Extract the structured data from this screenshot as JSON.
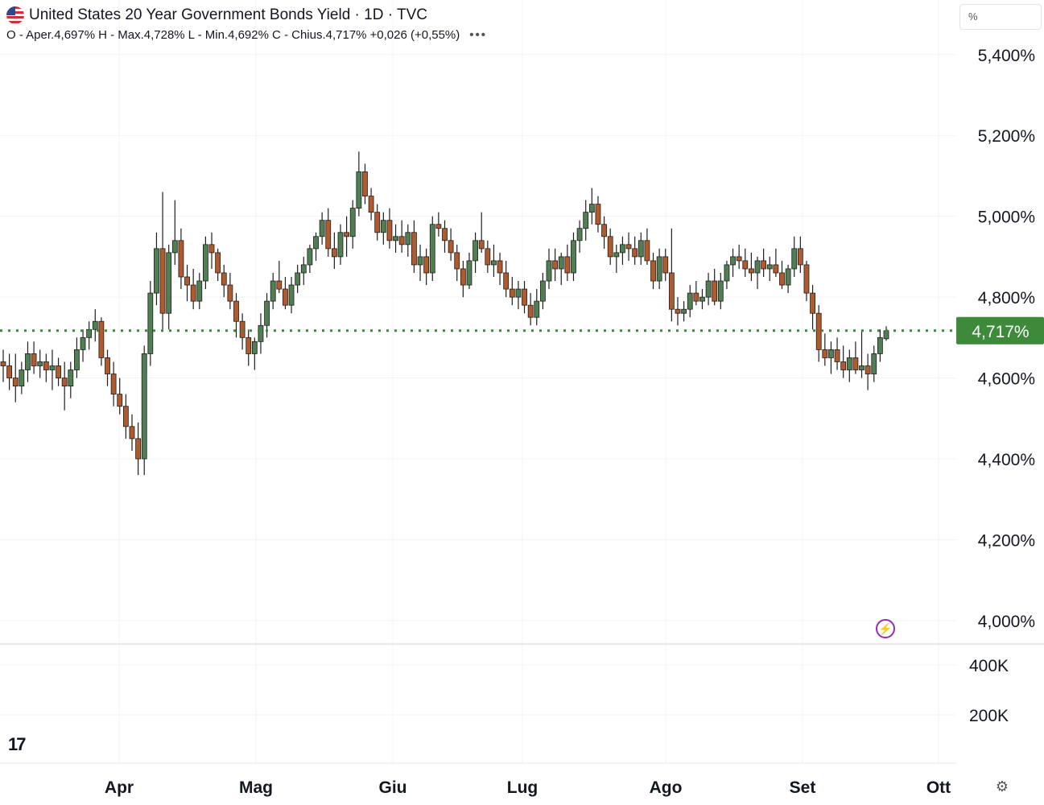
{
  "header": {
    "title": "United States 20 Year Government Bonds Yield · 1D · TVC",
    "ohlc": {
      "open": "O - Aper.4,697%",
      "high": "H - Max.4,728%",
      "low": "L - Min.4,692%",
      "close": "C - Chius.4,717%",
      "change": "+0,026 (+0,55%)"
    },
    "more_label": "•••"
  },
  "scale_toggle": "%",
  "logo_text": "17",
  "icons": {
    "alert": "lightning-icon",
    "settings": "gear-icon"
  },
  "colors": {
    "up": "#4f7f52",
    "down": "#b05a2e",
    "last_price": "#3c8a3a",
    "grid": "#f0f3fa",
    "text": "#131722"
  },
  "chart_data": {
    "type": "candlestick",
    "x_tick_labels": [
      "Apr",
      "Mag",
      "Giu",
      "Lug",
      "Ago",
      "Set",
      "Ott"
    ],
    "y_tick_labels": [
      "5,400%",
      "5,200%",
      "5,000%",
      "4,800%",
      "4,600%",
      "4,400%",
      "4,200%",
      "4,000%"
    ],
    "y_ticks": [
      5.4,
      5.2,
      5.0,
      4.8,
      4.6,
      4.4,
      4.2,
      4.0
    ],
    "ylim": [
      3.942,
      5.535
    ],
    "volume_tick_labels": [
      "400K",
      "200K"
    ],
    "last_price": 4.717,
    "last_price_label": "4,717%",
    "grid": true,
    "candles": [
      [
        4.64,
        4.67,
        4.59,
        4.63
      ],
      [
        4.63,
        4.66,
        4.57,
        4.6
      ],
      [
        4.6,
        4.66,
        4.54,
        4.58
      ],
      [
        4.58,
        4.64,
        4.56,
        4.62
      ],
      [
        4.62,
        4.69,
        4.59,
        4.66
      ],
      [
        4.66,
        4.69,
        4.61,
        4.63
      ],
      [
        4.63,
        4.67,
        4.6,
        4.64
      ],
      [
        4.64,
        4.66,
        4.59,
        4.62
      ],
      [
        4.62,
        4.67,
        4.57,
        4.63
      ],
      [
        4.63,
        4.65,
        4.58,
        4.6
      ],
      [
        4.6,
        4.64,
        4.52,
        4.58
      ],
      [
        4.58,
        4.64,
        4.55,
        4.62
      ],
      [
        4.62,
        4.7,
        4.6,
        4.67
      ],
      [
        4.67,
        4.72,
        4.64,
        4.7
      ],
      [
        4.7,
        4.74,
        4.67,
        4.72
      ],
      [
        4.72,
        4.77,
        4.69,
        4.74
      ],
      [
        4.74,
        4.75,
        4.63,
        4.65
      ],
      [
        4.65,
        4.67,
        4.58,
        4.61
      ],
      [
        4.61,
        4.64,
        4.53,
        4.56
      ],
      [
        4.56,
        4.6,
        4.51,
        4.53
      ],
      [
        4.53,
        4.56,
        4.45,
        4.48
      ],
      [
        4.48,
        4.51,
        4.42,
        4.45
      ],
      [
        4.45,
        4.49,
        4.36,
        4.4
      ],
      [
        4.4,
        4.68,
        4.36,
        4.66
      ],
      [
        4.66,
        4.84,
        4.63,
        4.81
      ],
      [
        4.81,
        4.96,
        4.78,
        4.92
      ],
      [
        4.92,
        5.06,
        4.72,
        4.76
      ],
      [
        4.76,
        4.93,
        4.72,
        4.91
      ],
      [
        4.91,
        5.04,
        4.88,
        4.94
      ],
      [
        4.94,
        4.97,
        4.82,
        4.85
      ],
      [
        4.85,
        4.88,
        4.79,
        4.83
      ],
      [
        4.83,
        4.87,
        4.77,
        4.79
      ],
      [
        4.79,
        4.86,
        4.77,
        4.84
      ],
      [
        4.84,
        4.95,
        4.82,
        4.93
      ],
      [
        4.93,
        4.96,
        4.87,
        4.91
      ],
      [
        4.91,
        4.92,
        4.84,
        4.86
      ],
      [
        4.86,
        4.88,
        4.8,
        4.83
      ],
      [
        4.83,
        4.86,
        4.77,
        4.79
      ],
      [
        4.79,
        4.81,
        4.7,
        4.74
      ],
      [
        4.74,
        4.76,
        4.67,
        4.7
      ],
      [
        4.7,
        4.72,
        4.63,
        4.66
      ],
      [
        4.66,
        4.7,
        4.62,
        4.69
      ],
      [
        4.69,
        4.76,
        4.66,
        4.73
      ],
      [
        4.73,
        4.81,
        4.7,
        4.79
      ],
      [
        4.79,
        4.86,
        4.77,
        4.84
      ],
      [
        4.84,
        4.89,
        4.81,
        4.82
      ],
      [
        4.82,
        4.85,
        4.77,
        4.78
      ],
      [
        4.78,
        4.85,
        4.76,
        4.83
      ],
      [
        4.83,
        4.88,
        4.81,
        4.86
      ],
      [
        4.86,
        4.9,
        4.83,
        4.88
      ],
      [
        4.88,
        4.93,
        4.86,
        4.92
      ],
      [
        4.92,
        4.96,
        4.89,
        4.95
      ],
      [
        4.95,
        5.01,
        4.93,
        4.99
      ],
      [
        4.99,
        5.02,
        4.9,
        4.92
      ],
      [
        4.92,
        4.96,
        4.87,
        4.9
      ],
      [
        4.9,
        4.98,
        4.88,
        4.96
      ],
      [
        4.96,
        5.0,
        4.9,
        4.95
      ],
      [
        4.95,
        5.04,
        4.92,
        5.02
      ],
      [
        5.02,
        5.16,
        5.0,
        5.11
      ],
      [
        5.11,
        5.13,
        5.03,
        5.05
      ],
      [
        5.05,
        5.07,
        4.99,
        5.01
      ],
      [
        5.01,
        5.03,
        4.94,
        4.96
      ],
      [
        4.96,
        5.01,
        4.93,
        4.99
      ],
      [
        4.99,
        5.02,
        4.92,
        4.94
      ],
      [
        4.94,
        4.98,
        4.91,
        4.95
      ],
      [
        4.95,
        4.99,
        4.91,
        4.93
      ],
      [
        4.93,
        4.98,
        4.9,
        4.96
      ],
      [
        4.96,
        4.99,
        4.86,
        4.88
      ],
      [
        4.88,
        4.93,
        4.84,
        4.9
      ],
      [
        4.9,
        4.92,
        4.83,
        4.86
      ],
      [
        4.86,
        5.0,
        4.84,
        4.98
      ],
      [
        4.98,
        5.01,
        4.95,
        4.97
      ],
      [
        4.97,
        4.99,
        4.91,
        4.94
      ],
      [
        4.94,
        4.97,
        4.89,
        4.91
      ],
      [
        4.91,
        4.93,
        4.84,
        4.87
      ],
      [
        4.87,
        4.89,
        4.8,
        4.83
      ],
      [
        4.83,
        4.91,
        4.82,
        4.89
      ],
      [
        4.89,
        4.96,
        4.86,
        4.94
      ],
      [
        4.94,
        5.01,
        4.91,
        4.92
      ],
      [
        4.92,
        4.94,
        4.86,
        4.88
      ],
      [
        4.88,
        4.93,
        4.85,
        4.89
      ],
      [
        4.89,
        4.91,
        4.83,
        4.86
      ],
      [
        4.86,
        4.89,
        4.8,
        4.82
      ],
      [
        4.82,
        4.85,
        4.78,
        4.8
      ],
      [
        4.8,
        4.84,
        4.77,
        4.82
      ],
      [
        4.82,
        4.84,
        4.76,
        4.78
      ],
      [
        4.78,
        4.81,
        4.73,
        4.75
      ],
      [
        4.75,
        4.82,
        4.73,
        4.79
      ],
      [
        4.79,
        4.86,
        4.77,
        4.84
      ],
      [
        4.84,
        4.92,
        4.82,
        4.89
      ],
      [
        4.89,
        4.92,
        4.84,
        4.87
      ],
      [
        4.87,
        4.91,
        4.83,
        4.9
      ],
      [
        4.9,
        4.93,
        4.84,
        4.86
      ],
      [
        4.86,
        4.96,
        4.84,
        4.94
      ],
      [
        4.94,
        4.99,
        4.91,
        4.97
      ],
      [
        4.97,
        5.04,
        4.94,
        5.01
      ],
      [
        5.01,
        5.07,
        4.98,
        5.03
      ],
      [
        5.03,
        5.05,
        4.96,
        4.98
      ],
      [
        4.98,
        5.0,
        4.92,
        4.95
      ],
      [
        4.95,
        4.97,
        4.88,
        4.9
      ],
      [
        4.9,
        4.93,
        4.86,
        4.91
      ],
      [
        4.91,
        4.95,
        4.88,
        4.93
      ],
      [
        4.93,
        4.96,
        4.89,
        4.92
      ],
      [
        4.92,
        4.95,
        4.88,
        4.9
      ],
      [
        4.9,
        4.96,
        4.88,
        4.94
      ],
      [
        4.94,
        4.97,
        4.88,
        4.89
      ],
      [
        4.89,
        4.91,
        4.82,
        4.84
      ],
      [
        4.84,
        4.92,
        4.82,
        4.9
      ],
      [
        4.9,
        4.92,
        4.84,
        4.86
      ],
      [
        4.86,
        4.97,
        4.74,
        4.77
      ],
      [
        4.77,
        4.8,
        4.73,
        4.76
      ],
      [
        4.76,
        4.79,
        4.74,
        4.77
      ],
      [
        4.77,
        4.83,
        4.75,
        4.81
      ],
      [
        4.81,
        4.84,
        4.78,
        4.79
      ],
      [
        4.79,
        4.82,
        4.77,
        4.8
      ],
      [
        4.8,
        4.86,
        4.78,
        4.84
      ],
      [
        4.84,
        4.87,
        4.78,
        4.79
      ],
      [
        4.79,
        4.86,
        4.77,
        4.84
      ],
      [
        4.84,
        4.89,
        4.82,
        4.88
      ],
      [
        4.88,
        4.92,
        4.85,
        4.9
      ],
      [
        4.9,
        4.93,
        4.87,
        4.89
      ],
      [
        4.89,
        4.92,
        4.85,
        4.87
      ],
      [
        4.87,
        4.91,
        4.84,
        4.86
      ],
      [
        4.86,
        4.9,
        4.82,
        4.89
      ],
      [
        4.89,
        4.92,
        4.85,
        4.87
      ],
      [
        4.87,
        4.9,
        4.84,
        4.88
      ],
      [
        4.88,
        4.92,
        4.85,
        4.86
      ],
      [
        4.86,
        4.89,
        4.82,
        4.83
      ],
      [
        4.83,
        4.88,
        4.81,
        4.87
      ],
      [
        4.87,
        4.95,
        4.85,
        4.92
      ],
      [
        4.92,
        4.95,
        4.86,
        4.88
      ],
      [
        4.88,
        4.89,
        4.79,
        4.81
      ],
      [
        4.81,
        4.83,
        4.72,
        4.76
      ],
      [
        4.76,
        4.78,
        4.64,
        4.67
      ],
      [
        4.67,
        4.71,
        4.63,
        4.65
      ],
      [
        4.65,
        4.69,
        4.61,
        4.67
      ],
      [
        4.67,
        4.7,
        4.62,
        4.64
      ],
      [
        4.64,
        4.68,
        4.6,
        4.62
      ],
      [
        4.62,
        4.67,
        4.59,
        4.65
      ],
      [
        4.65,
        4.69,
        4.61,
        4.62
      ],
      [
        4.62,
        4.72,
        4.6,
        4.63
      ],
      [
        4.63,
        4.66,
        4.57,
        4.61
      ],
      [
        4.61,
        4.68,
        4.59,
        4.66
      ],
      [
        4.66,
        4.72,
        4.64,
        4.7
      ],
      [
        4.697,
        4.728,
        4.692,
        4.717
      ]
    ]
  }
}
